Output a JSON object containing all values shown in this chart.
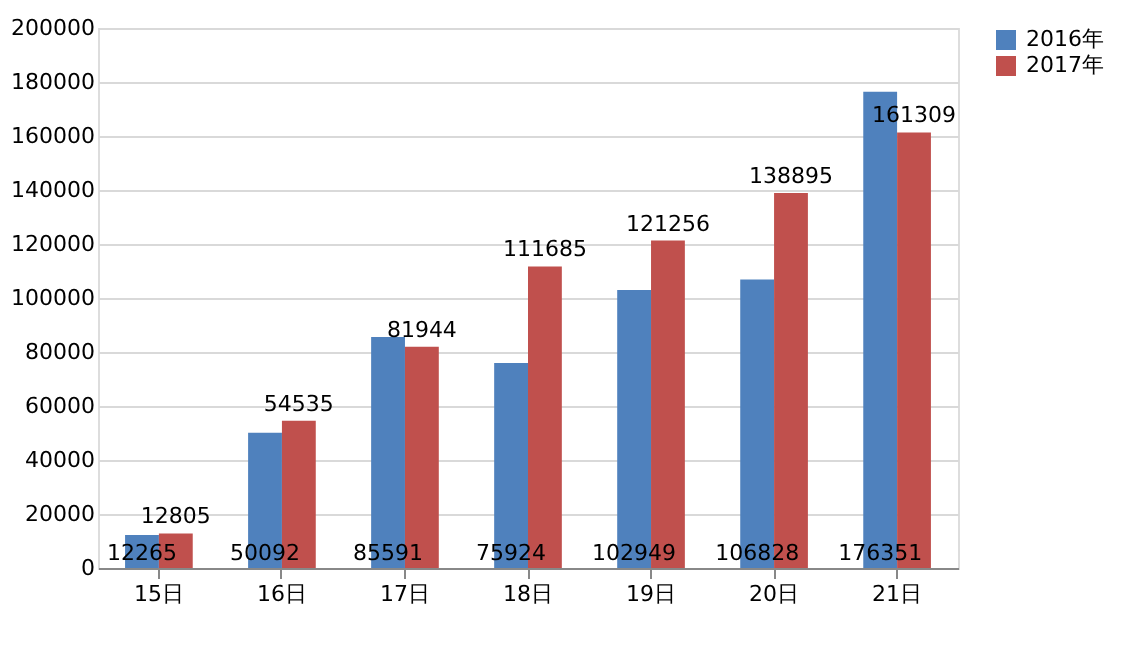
{
  "chart_data": {
    "type": "bar",
    "categories": [
      "15日",
      "16日",
      "17日",
      "18日",
      "19日",
      "20日",
      "21日"
    ],
    "series": [
      {
        "name": "2016年",
        "color": "#4f81bd",
        "values": [
          12265,
          50092,
          85591,
          75924,
          102949,
          106828,
          176351
        ]
      },
      {
        "name": "2017年",
        "color": "#c0504d",
        "values": [
          12805,
          54535,
          81944,
          111685,
          121256,
          138895,
          161309
        ]
      }
    ],
    "ylim": [
      0,
      200000
    ],
    "yticks": [
      0,
      20000,
      40000,
      60000,
      80000,
      100000,
      120000,
      140000,
      160000,
      180000,
      200000
    ],
    "grid": "y",
    "legend": "right",
    "data_labels": true
  }
}
